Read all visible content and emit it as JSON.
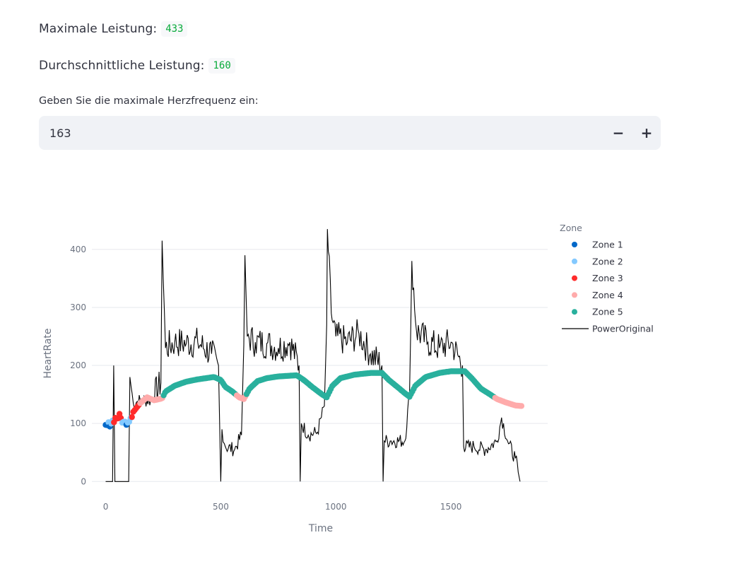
{
  "metrics": {
    "max_power_label": "Maximale Leistung:",
    "max_power_value": "433",
    "avg_power_label": "Durchschnittliche Leistung:",
    "avg_power_value": "160"
  },
  "hr_input": {
    "label": "Geben Sie die maximale Herzfrequenz ein:",
    "value": "163",
    "decrement_label": "−",
    "increment_label": "+"
  },
  "chart_data": {
    "type": "scatter",
    "xlabel": "Time",
    "ylabel": "HeartRate",
    "xlim": [
      -60,
      1920
    ],
    "ylim": [
      -35,
      440
    ],
    "x_ticks": [
      0,
      500,
      1000,
      1500
    ],
    "y_ticks": [
      0,
      100,
      200,
      300,
      400
    ],
    "grid": "horizontal",
    "legend_title": "Zone",
    "legend_position": "right",
    "zones": [
      {
        "name": "Zone 1",
        "color": "#0068c9"
      },
      {
        "name": "Zone 2",
        "color": "#83c9ff"
      },
      {
        "name": "Zone 3",
        "color": "#ff2b2b"
      },
      {
        "name": "Zone 4",
        "color": "#ffabab"
      },
      {
        "name": "Zone 5",
        "color": "#29b09d"
      }
    ],
    "heart_rate_keypoints": [
      [
        0,
        95
      ],
      [
        20,
        100
      ],
      [
        40,
        108
      ],
      [
        60,
        112
      ],
      [
        80,
        100
      ],
      [
        100,
        105
      ],
      [
        120,
        120
      ],
      [
        150,
        135
      ],
      [
        180,
        145
      ],
      [
        210,
        140
      ],
      [
        245,
        143
      ],
      [
        260,
        155
      ],
      [
        300,
        165
      ],
      [
        350,
        172
      ],
      [
        400,
        176
      ],
      [
        470,
        180
      ],
      [
        500,
        175
      ],
      [
        520,
        163
      ],
      [
        550,
        155
      ],
      [
        580,
        145
      ],
      [
        600,
        142
      ],
      [
        625,
        160
      ],
      [
        660,
        173
      ],
      [
        700,
        178
      ],
      [
        750,
        181
      ],
      [
        830,
        183
      ],
      [
        860,
        175
      ],
      [
        900,
        162
      ],
      [
        940,
        150
      ],
      [
        960,
        145
      ],
      [
        985,
        165
      ],
      [
        1020,
        178
      ],
      [
        1080,
        184
      ],
      [
        1150,
        187
      ],
      [
        1200,
        187
      ],
      [
        1230,
        175
      ],
      [
        1270,
        162
      ],
      [
        1300,
        152
      ],
      [
        1320,
        146
      ],
      [
        1345,
        165
      ],
      [
        1390,
        180
      ],
      [
        1450,
        187
      ],
      [
        1500,
        190
      ],
      [
        1560,
        190
      ],
      [
        1590,
        178
      ],
      [
        1630,
        160
      ],
      [
        1670,
        150
      ],
      [
        1700,
        142
      ],
      [
        1740,
        136
      ],
      [
        1780,
        131
      ],
      [
        1810,
        130
      ]
    ],
    "power_keypoints": [
      [
        0,
        0
      ],
      [
        30,
        0
      ],
      [
        35,
        200
      ],
      [
        40,
        0
      ],
      [
        100,
        0
      ],
      [
        105,
        180
      ],
      [
        120,
        135
      ],
      [
        150,
        140
      ],
      [
        200,
        140
      ],
      [
        240,
        170
      ],
      [
        245,
        415
      ],
      [
        260,
        230
      ],
      [
        300,
        240
      ],
      [
        350,
        238
      ],
      [
        400,
        240
      ],
      [
        460,
        220
      ],
      [
        490,
        200
      ],
      [
        500,
        0
      ],
      [
        505,
        90
      ],
      [
        520,
        60
      ],
      [
        560,
        55
      ],
      [
        590,
        80
      ],
      [
        600,
        235
      ],
      [
        605,
        390
      ],
      [
        615,
        250
      ],
      [
        650,
        240
      ],
      [
        700,
        238
      ],
      [
        750,
        230
      ],
      [
        800,
        240
      ],
      [
        840,
        200
      ],
      [
        845,
        0
      ],
      [
        850,
        100
      ],
      [
        880,
        80
      ],
      [
        920,
        85
      ],
      [
        950,
        130
      ],
      [
        960,
        270
      ],
      [
        963,
        435
      ],
      [
        980,
        290
      ],
      [
        1000,
        250
      ],
      [
        1050,
        240
      ],
      [
        1100,
        255
      ],
      [
        1150,
        220
      ],
      [
        1200,
        200
      ],
      [
        1205,
        0
      ],
      [
        1210,
        70
      ],
      [
        1240,
        70
      ],
      [
        1300,
        70
      ],
      [
        1320,
        150
      ],
      [
        1325,
        260
      ],
      [
        1330,
        380
      ],
      [
        1350,
        260
      ],
      [
        1400,
        240
      ],
      [
        1450,
        230
      ],
      [
        1500,
        240
      ],
      [
        1550,
        200
      ],
      [
        1555,
        60
      ],
      [
        1600,
        60
      ],
      [
        1650,
        55
      ],
      [
        1700,
        70
      ],
      [
        1720,
        110
      ],
      [
        1750,
        65
      ],
      [
        1780,
        40
      ],
      [
        1800,
        0
      ]
    ],
    "series": [
      {
        "name": "PowerOriginal",
        "color": "#000000",
        "max": 433,
        "mean": 160
      }
    ]
  }
}
